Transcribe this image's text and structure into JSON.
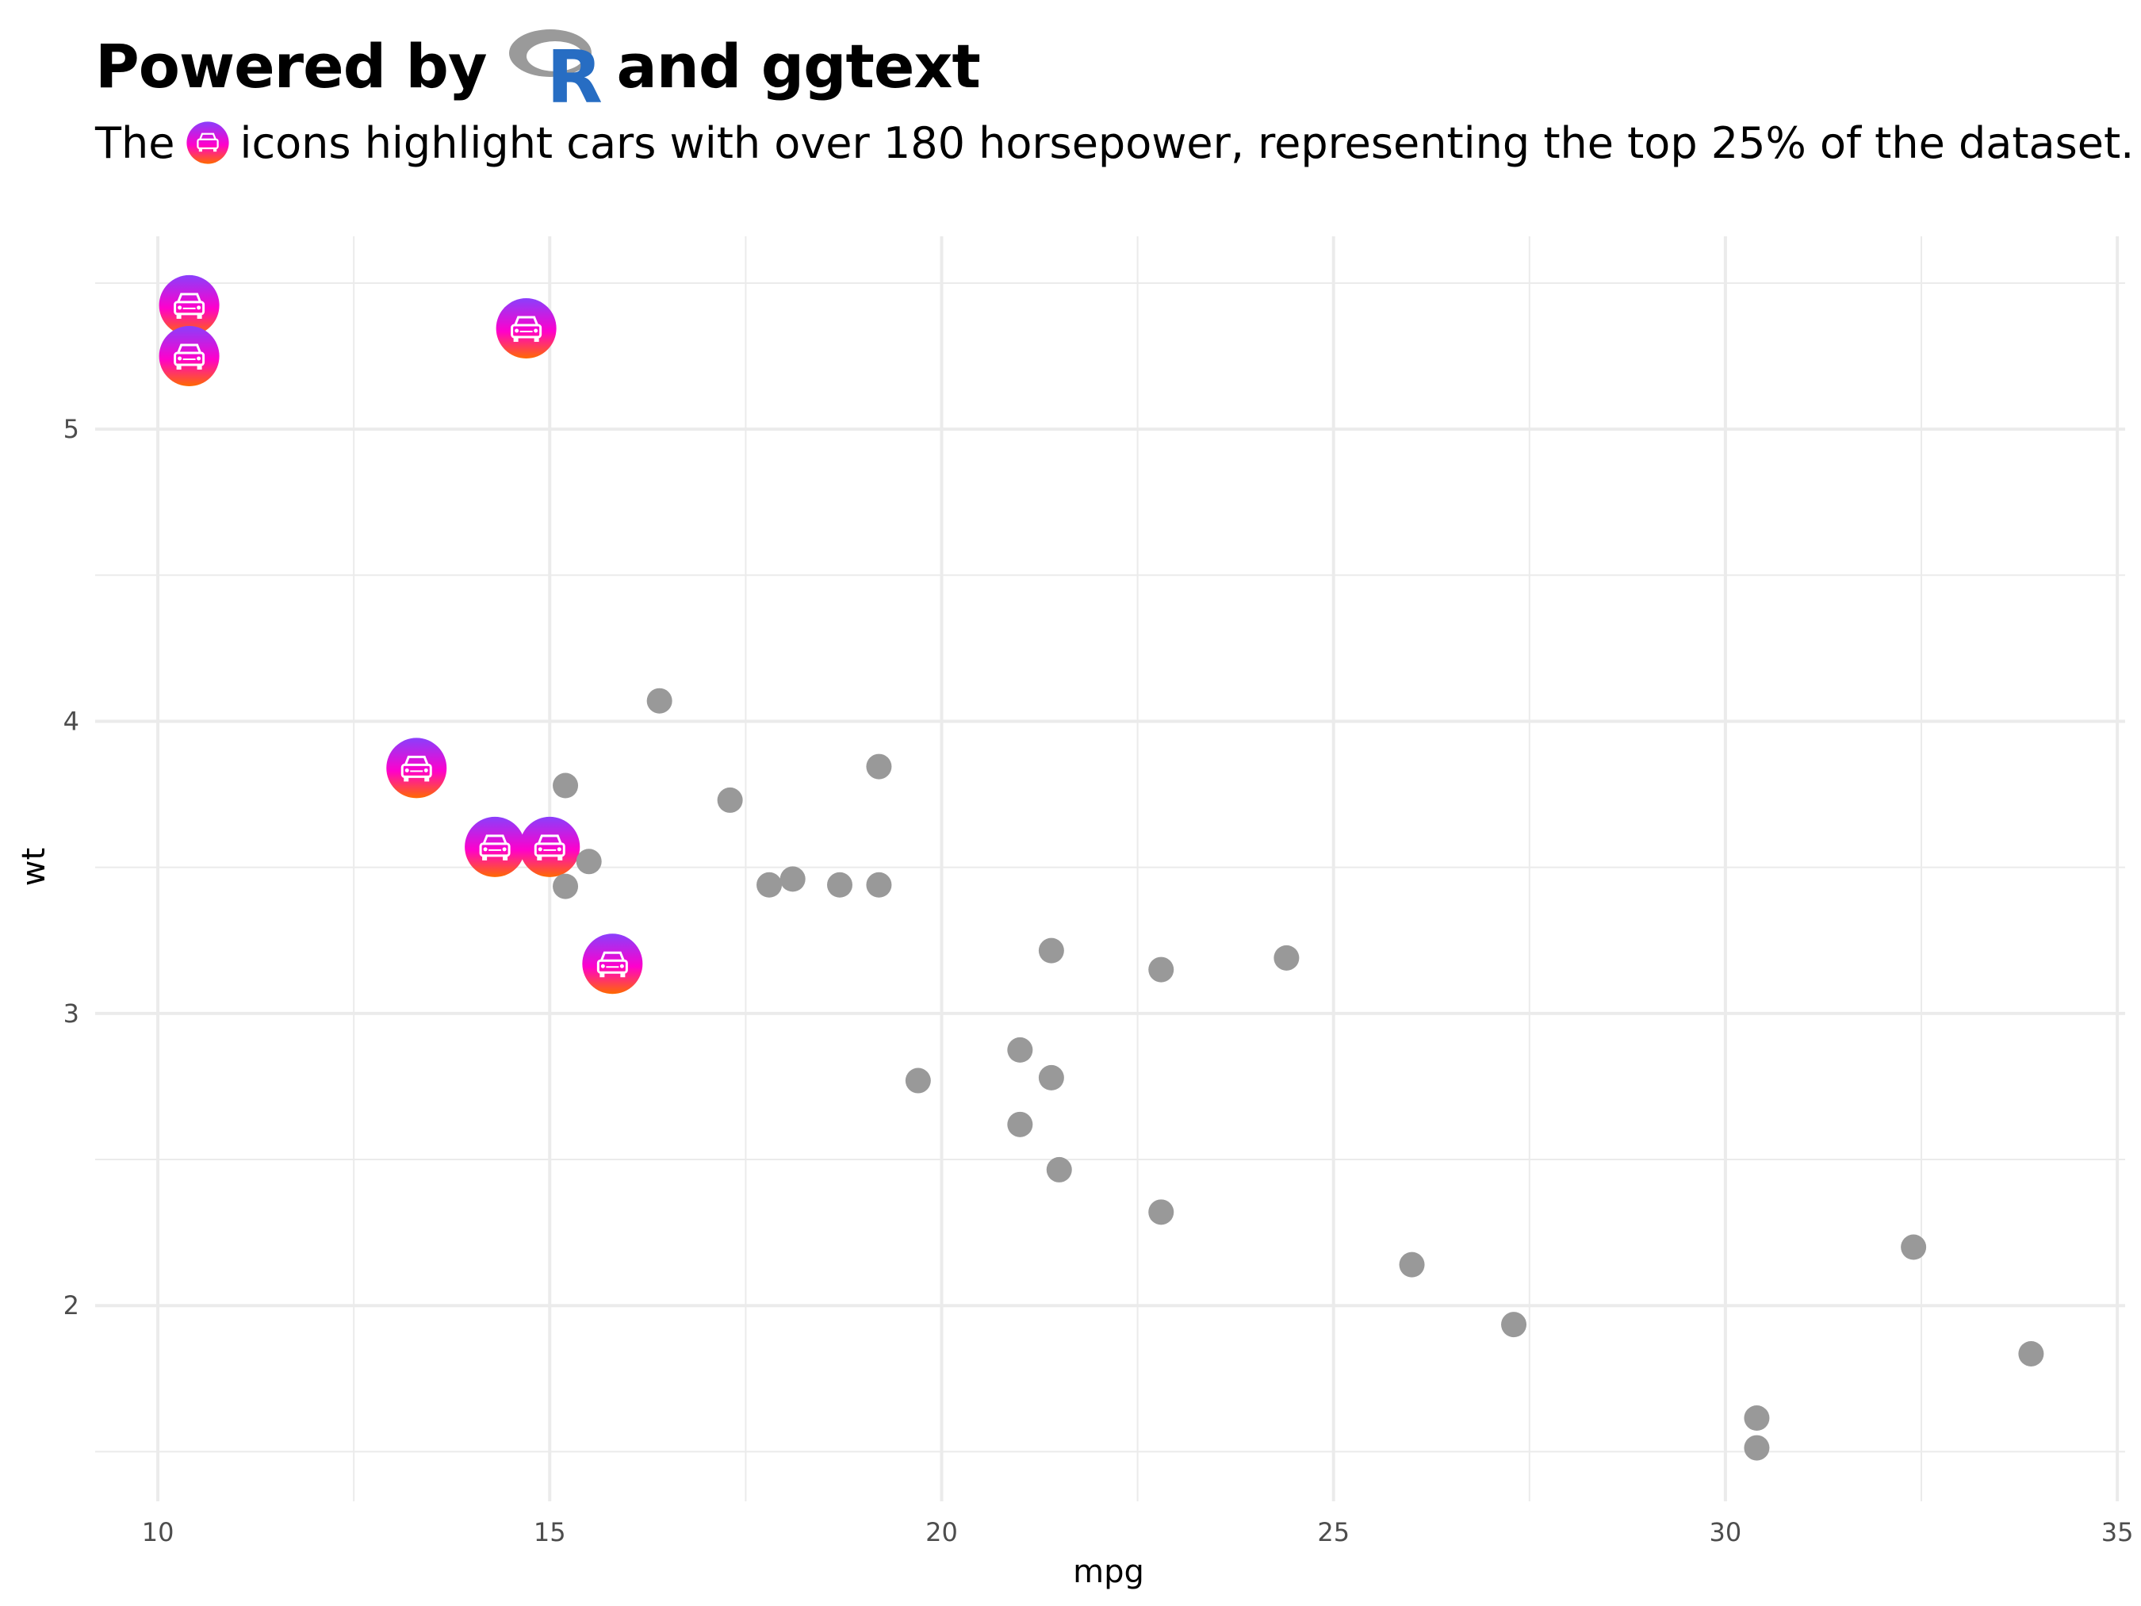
{
  "title": {
    "before": "Powered by",
    "logo_text": "R",
    "after": "and ggtext"
  },
  "subtitle": {
    "before": "The",
    "after": "icons highlight cars with over 180 horsepower, representing the top 25% of the dataset."
  },
  "colors": {
    "grid": "#ebebeb",
    "point": "#999999",
    "icon_top": "#8a3ffc",
    "icon_mid": "#ff00cc",
    "icon_bottom": "#ff6a00",
    "r_logo_blue": "#276dc3",
    "r_logo_gray": "#9a9a9a"
  },
  "chart_data": {
    "type": "scatter",
    "xlabel": "mpg",
    "ylabel": "wt",
    "xlim": [
      9.2,
      35.1
    ],
    "ylim": [
      1.33,
      5.66
    ],
    "x_ticks": [
      10,
      15,
      20,
      25,
      30,
      35
    ],
    "y_ticks": [
      2,
      3,
      4,
      5
    ],
    "grid": true,
    "legend": "none",
    "series": [
      {
        "marker": "car-icon-circle",
        "points": [
          {
            "x": 10.4,
            "y": 5.424
          },
          {
            "x": 10.4,
            "y": 5.25
          },
          {
            "x": 14.7,
            "y": 5.345
          },
          {
            "x": 13.3,
            "y": 3.84
          },
          {
            "x": 14.3,
            "y": 3.57
          },
          {
            "x": 15.0,
            "y": 3.57
          },
          {
            "x": 15.8,
            "y": 3.17
          }
        ]
      },
      {
        "marker": "gray-dot",
        "points": [
          {
            "x": 16.4,
            "y": 4.07
          },
          {
            "x": 15.2,
            "y": 3.78
          },
          {
            "x": 17.3,
            "y": 3.73
          },
          {
            "x": 19.2,
            "y": 3.845
          },
          {
            "x": 15.5,
            "y": 3.52
          },
          {
            "x": 15.2,
            "y": 3.435
          },
          {
            "x": 17.8,
            "y": 3.44
          },
          {
            "x": 18.1,
            "y": 3.46
          },
          {
            "x": 18.7,
            "y": 3.44
          },
          {
            "x": 19.2,
            "y": 3.44
          },
          {
            "x": 21.4,
            "y": 3.215
          },
          {
            "x": 22.8,
            "y": 3.15
          },
          {
            "x": 24.4,
            "y": 3.19
          },
          {
            "x": 21.0,
            "y": 2.875
          },
          {
            "x": 21.4,
            "y": 2.78
          },
          {
            "x": 19.7,
            "y": 2.77
          },
          {
            "x": 21.0,
            "y": 2.62
          },
          {
            "x": 21.5,
            "y": 2.465
          },
          {
            "x": 22.8,
            "y": 2.32
          },
          {
            "x": 26.0,
            "y": 2.14
          },
          {
            "x": 27.3,
            "y": 1.935
          },
          {
            "x": 32.4,
            "y": 2.2
          },
          {
            "x": 33.9,
            "y": 1.835
          },
          {
            "x": 30.4,
            "y": 1.615
          },
          {
            "x": 30.4,
            "y": 1.513
          }
        ]
      }
    ]
  }
}
